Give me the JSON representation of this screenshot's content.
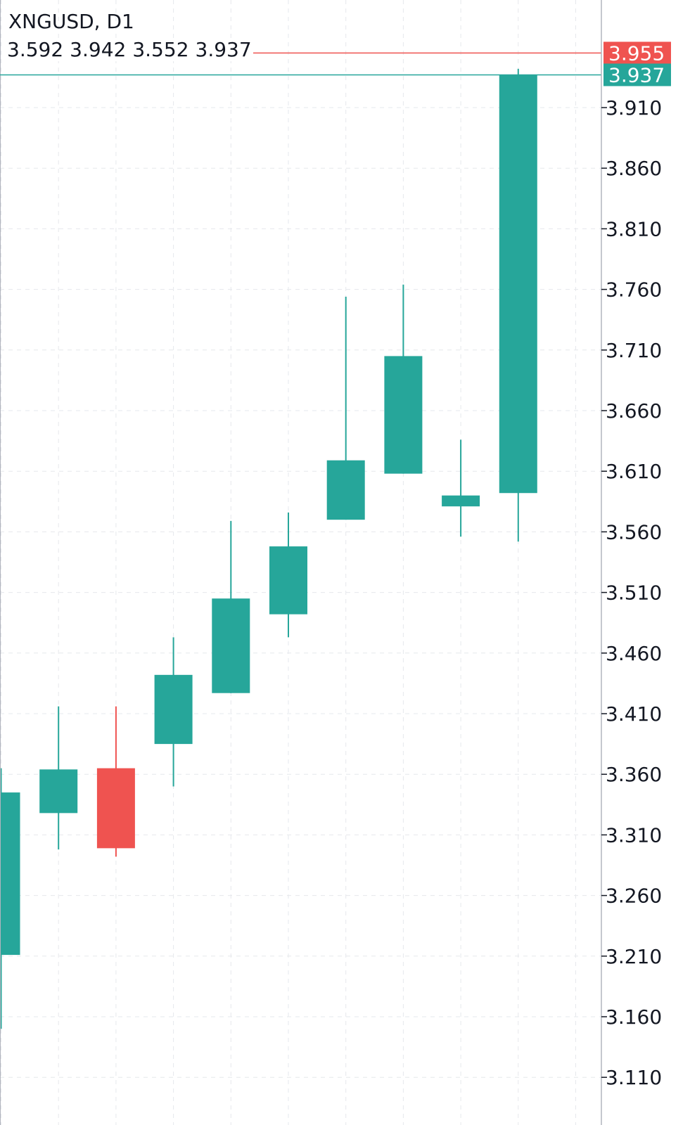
{
  "header": {
    "symbol_label": "XNGUSD, D1",
    "ohlc": {
      "open": "3.592",
      "high": "3.942",
      "low": "3.552",
      "close": "3.937"
    }
  },
  "price_tags": {
    "ask": {
      "label": "3.955",
      "value": 3.955,
      "color": "#ef5350"
    },
    "bid": {
      "label": "3.937",
      "value": 3.937,
      "color": "#26a69a"
    }
  },
  "chart_data": {
    "type": "candlestick",
    "symbol": "XNGUSD",
    "timeframe": "D1",
    "y_axis": {
      "range": [
        3.09,
        3.96
      ],
      "ticks": [
        3.91,
        3.86,
        3.81,
        3.76,
        3.71,
        3.66,
        3.61,
        3.56,
        3.51,
        3.46,
        3.41,
        3.36,
        3.31,
        3.26,
        3.21,
        3.16,
        3.11
      ],
      "tick_labels": [
        "3.910",
        "3.860",
        "3.810",
        "3.760",
        "3.710",
        "3.660",
        "3.610",
        "3.560",
        "3.510",
        "3.460",
        "3.410",
        "3.360",
        "3.310",
        "3.260",
        "3.210",
        "3.160",
        "3.110"
      ]
    },
    "grid": true,
    "colors": {
      "up": "#26a69a",
      "down": "#ef5350"
    },
    "candles": [
      {
        "open": 3.211,
        "high": 3.365,
        "low": 3.15,
        "close": 3.345
      },
      {
        "open": 3.328,
        "high": 3.416,
        "low": 3.298,
        "close": 3.364
      },
      {
        "open": 3.365,
        "high": 3.416,
        "low": 3.292,
        "close": 3.299
      },
      {
        "open": 3.385,
        "high": 3.473,
        "low": 3.35,
        "close": 3.442
      },
      {
        "open": 3.427,
        "high": 3.569,
        "low": 3.427,
        "close": 3.505
      },
      {
        "open": 3.492,
        "high": 3.576,
        "low": 3.473,
        "close": 3.548
      },
      {
        "open": 3.57,
        "high": 3.754,
        "low": 3.57,
        "close": 3.619
      },
      {
        "open": 3.608,
        "high": 3.764,
        "low": 3.608,
        "close": 3.705
      },
      {
        "open": 3.581,
        "high": 3.636,
        "low": 3.556,
        "close": 3.59
      },
      {
        "open": 3.592,
        "high": 3.942,
        "low": 3.552,
        "close": 3.937
      }
    ]
  }
}
